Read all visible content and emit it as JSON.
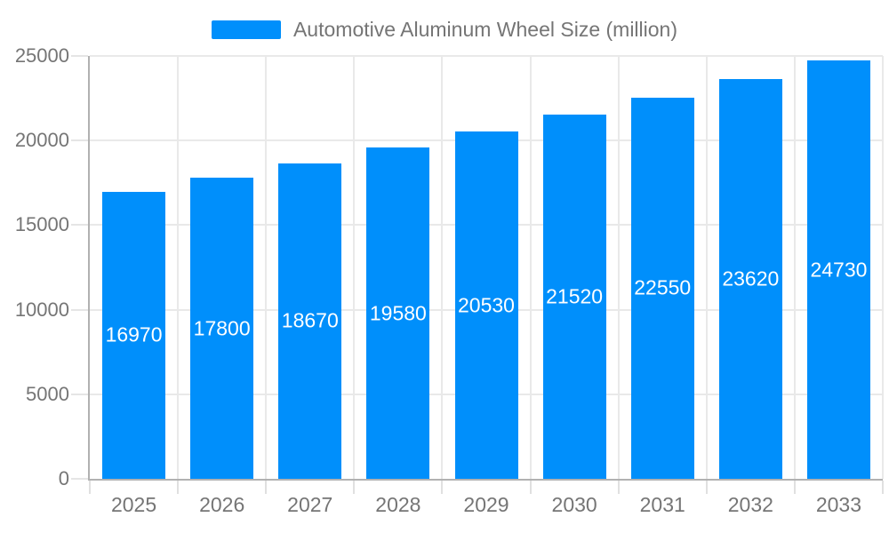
{
  "legend": {
    "label": "Automotive Aluminum Wheel Size (million)",
    "swatch_color": "#008FFB"
  },
  "chart_data": {
    "type": "bar",
    "title": "Automotive Aluminum Wheel Size (million)",
    "series_name": "Automotive Aluminum Wheel Size (million)",
    "categories": [
      "2025",
      "2026",
      "2027",
      "2028",
      "2029",
      "2030",
      "2031",
      "2032",
      "2033"
    ],
    "values": [
      16970,
      17800,
      18670,
      19580,
      20530,
      21520,
      22550,
      23620,
      24730
    ],
    "xlabel": "",
    "ylabel": "",
    "ylim": [
      0,
      25000
    ],
    "y_ticks": [
      0,
      5000,
      10000,
      15000,
      20000,
      25000
    ],
    "grid": true,
    "legend_position": "top",
    "data_labels_position": "inside-center",
    "bar_color": "#008FFB",
    "data_label_color": "#ffffff",
    "axis_text_color": "#757575",
    "gridline_color": "#e9e9e9",
    "axis_line_color": "#b1b1b1",
    "background_color": "#ffffff"
  }
}
